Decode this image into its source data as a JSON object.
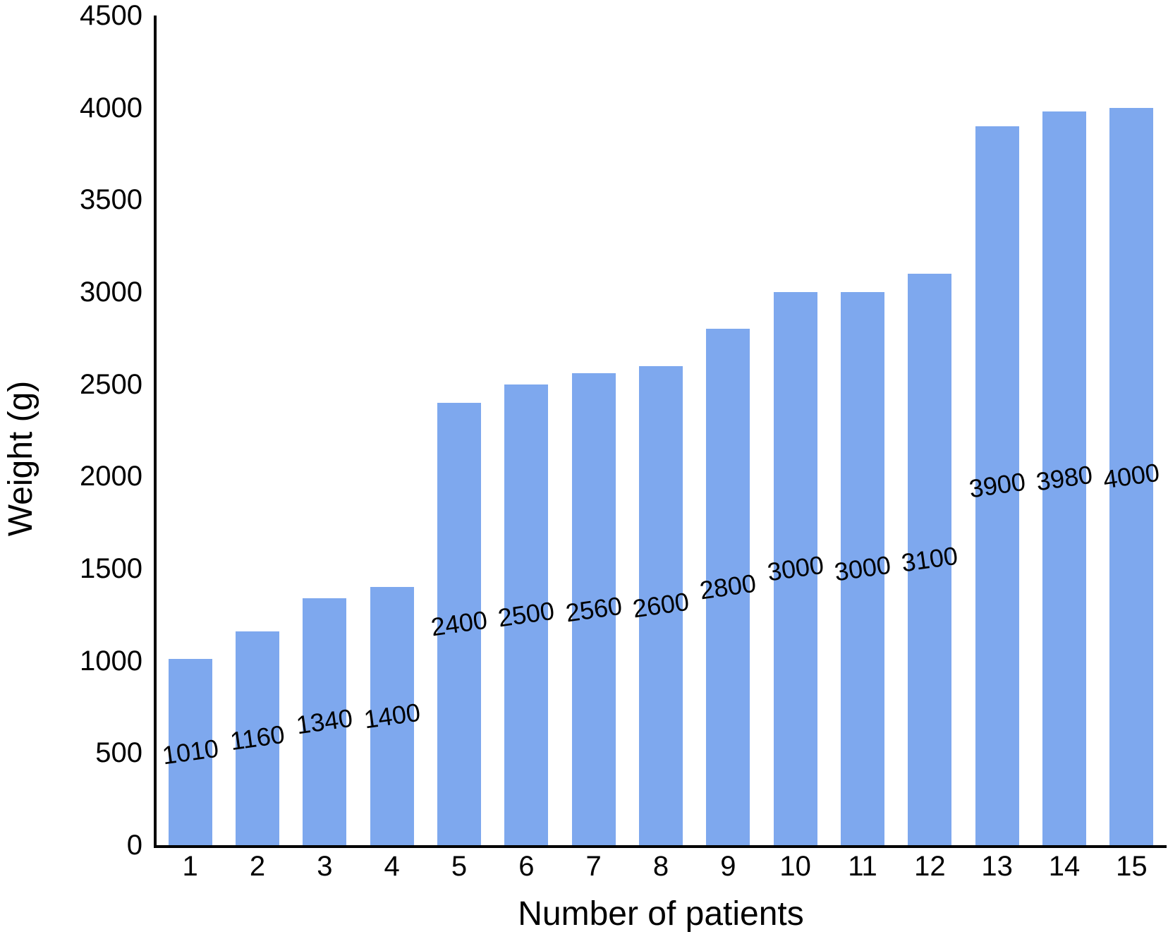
{
  "chart_data": {
    "type": "bar",
    "title": "",
    "xlabel": "Number of patients",
    "ylabel": "Weight (g)",
    "categories": [
      "1",
      "2",
      "3",
      "4",
      "5",
      "6",
      "7",
      "8",
      "9",
      "10",
      "11",
      "12",
      "13",
      "14",
      "15"
    ],
    "values": [
      1010,
      1160,
      1340,
      1400,
      2400,
      2500,
      2560,
      2600,
      2800,
      3000,
      3000,
      3100,
      3900,
      3980,
      4000
    ],
    "data_labels": [
      "1010",
      "1160",
      "1340",
      "1400",
      "2400",
      "2500",
      "2560",
      "2600",
      "2800",
      "3000",
      "3000",
      "3100",
      "3900",
      "3980",
      "4000"
    ],
    "ylim": [
      0,
      4500
    ],
    "ytick_step": 500,
    "yticks": [
      "0",
      "500",
      "1000",
      "1500",
      "2000",
      "2500",
      "3000",
      "3500",
      "4000",
      "4500"
    ],
    "grid": false,
    "legend": false,
    "bar_color": "#7ea8ee",
    "axis_color": "#000000",
    "text_color": "#000000",
    "data_label_rotation_deg": -8,
    "data_label_position": "center-of-bar"
  }
}
